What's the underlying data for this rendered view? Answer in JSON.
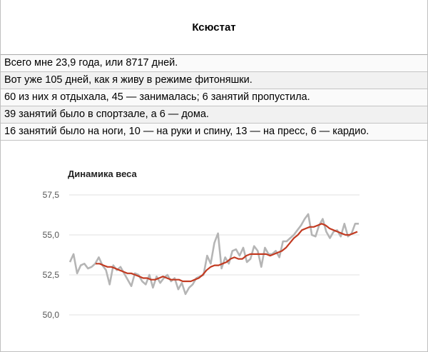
{
  "title": "Ксюстат",
  "stats": [
    "Всего мне 23,9 года, или 8717 дней.",
    "Вот уже 105 дней, как я живу в режиме фитоняшки.",
    "60 из них я отдыхала, 45 — занималась; 6 занятий пропустила.",
    "39 занятий было в спортзале, а 6 — дома.",
    "16 занятий было на ноги, 10 — на руки и спину, 13 — на пресс, 6 — кардио."
  ],
  "chart_data": {
    "type": "line",
    "title": "Динамика веса",
    "xlabel": "",
    "ylabel": "",
    "ylim": [
      50.0,
      57.5
    ],
    "yticks": [
      "50,0",
      "52,5",
      "55,0",
      "57,5"
    ],
    "grid": true,
    "series": [
      {
        "color": "#b5b5b5",
        "values": [
          53.3,
          53.8,
          52.6,
          53.1,
          53.2,
          52.9,
          53.0,
          53.2,
          53.6,
          53.1,
          52.8,
          51.9,
          53.1,
          52.8,
          53.0,
          52.6,
          52.2,
          51.8,
          52.6,
          52.5,
          52.1,
          51.9,
          52.5,
          51.7,
          52.4,
          52.0,
          52.3,
          52.5,
          52.1,
          52.3,
          51.6,
          52.0,
          51.3,
          51.7,
          51.9,
          52.3,
          52.4,
          52.5,
          53.7,
          53.2,
          54.5,
          55.1,
          52.9,
          53.6,
          53.2,
          54.0,
          54.1,
          53.7,
          54.2,
          53.3,
          53.5,
          54.3,
          54.0,
          53.0,
          54.2,
          53.8,
          53.8,
          54.0,
          53.6,
          54.6,
          54.6,
          54.8,
          55.0,
          55.3,
          55.6,
          56.0,
          56.3,
          55.0,
          54.9,
          55.6,
          56.0,
          55.2,
          54.8,
          55.2,
          55.3,
          54.9,
          55.7,
          54.9,
          55.1,
          55.7,
          55.7
        ]
      },
      {
        "color": "#c23b22",
        "values": [
          53.2,
          53.2,
          53.1,
          53.0,
          53.0,
          52.9,
          52.8,
          52.7,
          52.6,
          52.6,
          52.5,
          52.4,
          52.3,
          52.3,
          52.2,
          52.2,
          52.3,
          52.4,
          52.3,
          52.2,
          52.2,
          52.2,
          52.1,
          52.1,
          52.1,
          52.2,
          52.3,
          52.5,
          52.8,
          53.0,
          53.1,
          53.1,
          53.2,
          53.3,
          53.5,
          53.6,
          53.5,
          53.5,
          53.7,
          53.8,
          53.8,
          53.8,
          53.8,
          53.8,
          53.7,
          53.8,
          53.9,
          54.0,
          54.2,
          54.5,
          54.8,
          55.0,
          55.3,
          55.4,
          55.5,
          55.5,
          55.6,
          55.7,
          55.6,
          55.4,
          55.3,
          55.2,
          55.1,
          55.0,
          55.0,
          55.1,
          55.2
        ]
      }
    ]
  }
}
